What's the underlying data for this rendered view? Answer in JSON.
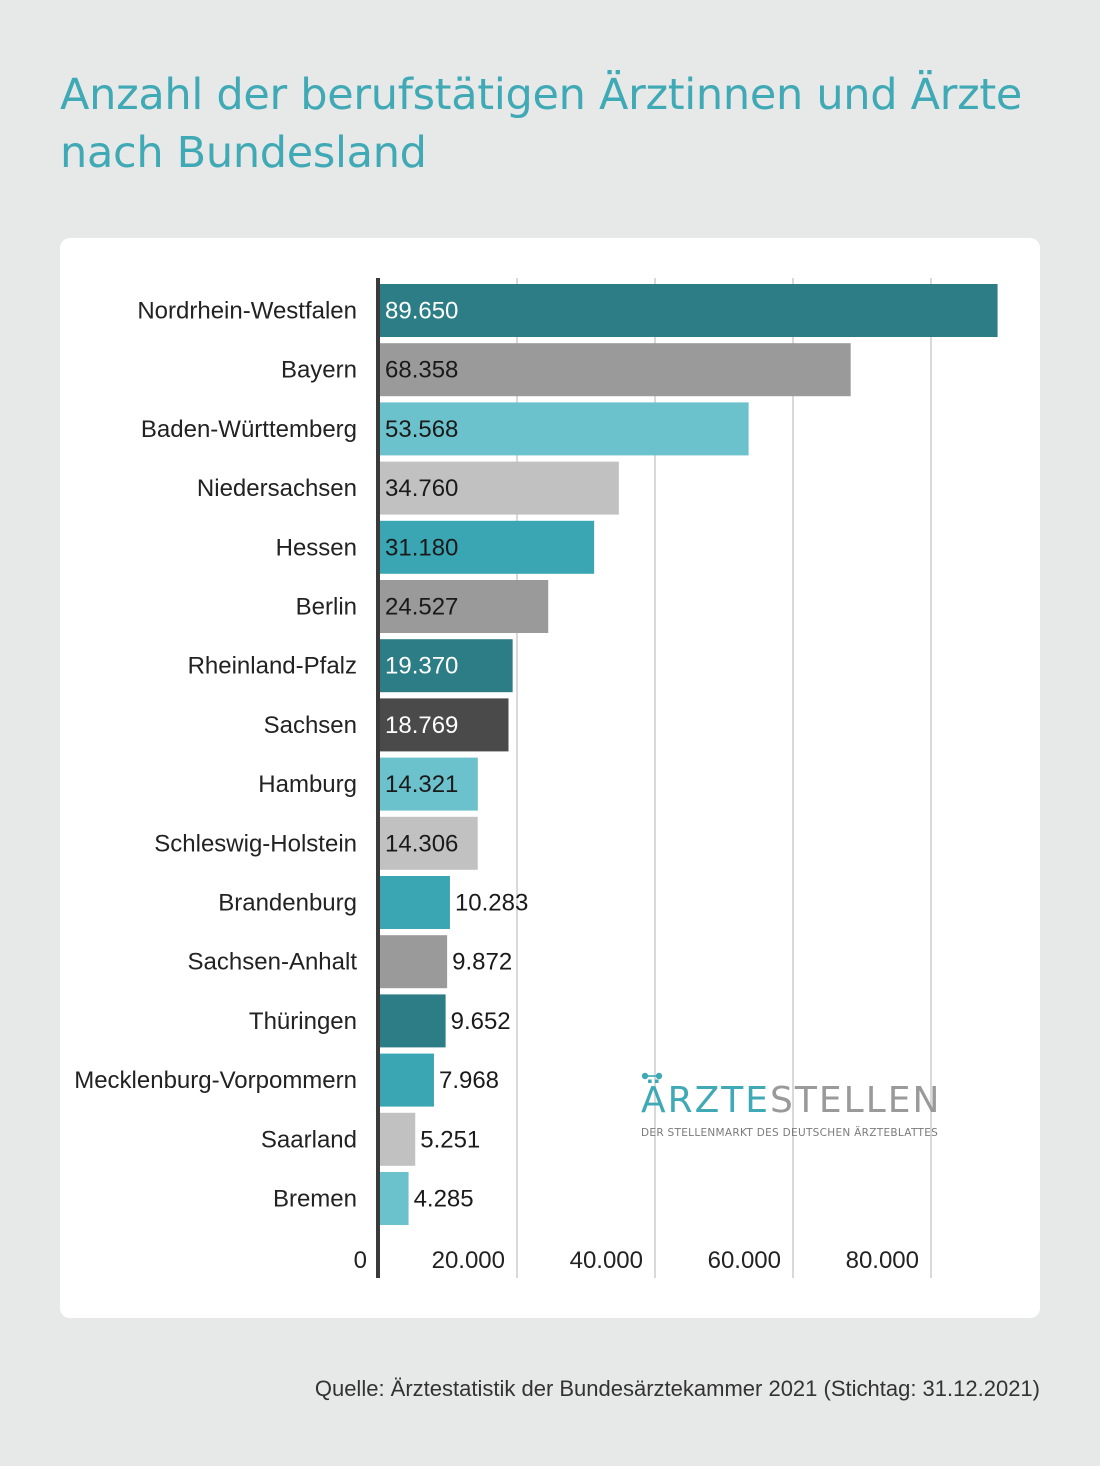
{
  "title": "Anzahl der berufstätigen Ärztinnen und Ärzte nach Bundesland",
  "source": "Quelle: Ärztestatistik der Bundesärztekammer 2021 (Stichtag: 31.12.2021)",
  "logo": {
    "word_part1": "ÄRZTE",
    "word_part2": "STELLEN",
    "tagline": "DER STELLENMARKT DES DEUTSCHEN ÄRZTEBLATTES"
  },
  "chart_data": {
    "type": "bar",
    "orientation": "horizontal",
    "categories": [
      "Nordrhein-Westfalen",
      "Bayern",
      "Baden-Württemberg",
      "Niedersachsen",
      "Hessen",
      "Berlin",
      "Rheinland-Pfalz",
      "Sachsen",
      "Hamburg",
      "Schleswig-Holstein",
      "Brandenburg",
      "Sachsen-Anhalt",
      "Thüringen",
      "Mecklenburg-Vorpommern",
      "Saarland",
      "Bremen"
    ],
    "values": [
      89650,
      68358,
      53568,
      34760,
      31180,
      24527,
      19370,
      18769,
      14321,
      14306,
      10283,
      9872,
      9652,
      7968,
      5251,
      4285
    ],
    "value_labels": [
      "89.650",
      "68.358",
      "53.568",
      "34.760",
      "31.180",
      "24.527",
      "19.370",
      "18.769",
      "14.321",
      "14.306",
      "10.283",
      "9.872",
      "9.652",
      "7.968",
      "5.251",
      "4.285"
    ],
    "colors": [
      "#2c7d85",
      "#9a9a9a",
      "#6cc2cc",
      "#c1c1c1",
      "#3aa6b3",
      "#9a9a9a",
      "#2c7d85",
      "#4a4a4a",
      "#6cc2cc",
      "#c1c1c1",
      "#3aa6b3",
      "#9a9a9a",
      "#2c7d85",
      "#3aa6b3",
      "#c1c1c1",
      "#6cc2cc"
    ],
    "label_colors": [
      "#ffffff",
      "#1a1a1a",
      "#1a1a1a",
      "#1a1a1a",
      "#1a1a1a",
      "#1a1a1a",
      "#ffffff",
      "#ffffff",
      "#1a1a1a",
      "#1a1a1a",
      "#1a1a1a",
      "#1a1a1a",
      "#ffffff",
      "#1a1a1a",
      "#1a1a1a",
      "#1a1a1a"
    ],
    "xticks": [
      0,
      20000,
      40000,
      60000,
      80000
    ],
    "xtick_labels": [
      "0",
      "20.000",
      "40.000",
      "60.000",
      "80.000"
    ],
    "xlim": [
      0,
      90000
    ],
    "grid": true,
    "xlabel": "",
    "ylabel": ""
  }
}
